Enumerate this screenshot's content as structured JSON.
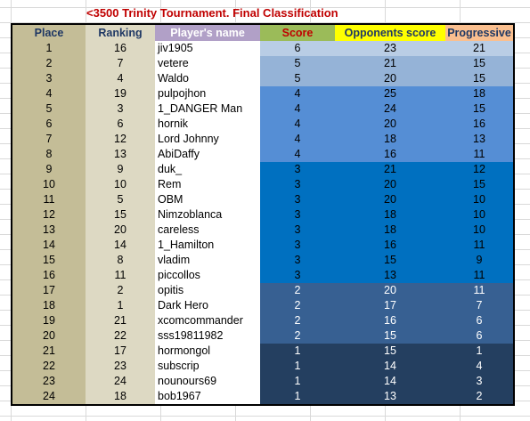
{
  "title": "<3500 Trinity Tournament. Final Classification",
  "headers": [
    {
      "key": "place",
      "label": "Place",
      "bg": "#c4bd97",
      "color": "#1f3864"
    },
    {
      "key": "ranking",
      "label": "Ranking",
      "bg": "#ddd9c3",
      "color": "#1f3864"
    },
    {
      "key": "name",
      "label": "Player's name",
      "bg": "#b1a0c7",
      "color": "#ffffff"
    },
    {
      "key": "score",
      "label": "Score",
      "bg": "#9bbb59",
      "color": "#c00000"
    },
    {
      "key": "opp",
      "label": "Opponents score",
      "bg": "#ffff00",
      "color": "#1f3864"
    },
    {
      "key": "prog",
      "label": "Progressive",
      "bg": "#fabf8f",
      "color": "#1f3864"
    }
  ],
  "group_colors": {
    "6": "#b9cde5",
    "5": "#95b3d7",
    "4": "#558ed5",
    "3": "#0070c0",
    "2": "#376092",
    "1": "#243f60"
  },
  "rows": [
    {
      "place": "1",
      "ranking": "16",
      "name": "jiv1905",
      "score": "6",
      "opp": "23",
      "prog": "21"
    },
    {
      "place": "2",
      "ranking": "7",
      "name": "vetere",
      "score": "5",
      "opp": "21",
      "prog": "15"
    },
    {
      "place": "3",
      "ranking": "4",
      "name": "Waldo",
      "score": "5",
      "opp": "20",
      "prog": "15"
    },
    {
      "place": "4",
      "ranking": "19",
      "name": "pulpojhon",
      "score": "4",
      "opp": "25",
      "prog": "18"
    },
    {
      "place": "5",
      "ranking": "3",
      "name": "1_DANGER Man",
      "score": "4",
      "opp": "24",
      "prog": "15"
    },
    {
      "place": "6",
      "ranking": "6",
      "name": "hornik",
      "score": "4",
      "opp": "20",
      "prog": "16"
    },
    {
      "place": "7",
      "ranking": "12",
      "name": "Lord Johnny",
      "score": "4",
      "opp": "18",
      "prog": "13"
    },
    {
      "place": "8",
      "ranking": "13",
      "name": "AbiDaffy",
      "score": "4",
      "opp": "16",
      "prog": "11"
    },
    {
      "place": "9",
      "ranking": "9",
      "name": "duk_",
      "score": "3",
      "opp": "21",
      "prog": "12"
    },
    {
      "place": "10",
      "ranking": "10",
      "name": "Rem",
      "score": "3",
      "opp": "20",
      "prog": "15"
    },
    {
      "place": "11",
      "ranking": "5",
      "name": "OBM",
      "score": "3",
      "opp": "20",
      "prog": "10"
    },
    {
      "place": "12",
      "ranking": "15",
      "name": "Nimzoblanca",
      "score": "3",
      "opp": "18",
      "prog": "10"
    },
    {
      "place": "13",
      "ranking": "20",
      "name": "careless",
      "score": "3",
      "opp": "18",
      "prog": "10"
    },
    {
      "place": "14",
      "ranking": "14",
      "name": "1_Hamilton",
      "score": "3",
      "opp": "16",
      "prog": "11"
    },
    {
      "place": "15",
      "ranking": "8",
      "name": "vladim",
      "score": "3",
      "opp": "15",
      "prog": "9"
    },
    {
      "place": "16",
      "ranking": "11",
      "name": "piccollos",
      "score": "3",
      "opp": "13",
      "prog": "11"
    },
    {
      "place": "17",
      "ranking": "2",
      "name": "opitis",
      "score": "2",
      "opp": "20",
      "prog": "11"
    },
    {
      "place": "18",
      "ranking": "1",
      "name": "Dark Hero",
      "score": "2",
      "opp": "17",
      "prog": "7"
    },
    {
      "place": "19",
      "ranking": "21",
      "name": "xcomcommander",
      "score": "2",
      "opp": "16",
      "prog": "6"
    },
    {
      "place": "20",
      "ranking": "22",
      "name": "sss19811982",
      "score": "2",
      "opp": "15",
      "prog": "6"
    },
    {
      "place": "21",
      "ranking": "17",
      "name": "hormongol",
      "score": "1",
      "opp": "15",
      "prog": "1"
    },
    {
      "place": "22",
      "ranking": "23",
      "name": "subscrip",
      "score": "1",
      "opp": "14",
      "prog": "4"
    },
    {
      "place": "23",
      "ranking": "24",
      "name": "nounours69",
      "score": "1",
      "opp": "14",
      "prog": "3"
    },
    {
      "place": "24",
      "ranking": "18",
      "name": "bob1967",
      "score": "1",
      "opp": "13",
      "prog": "2"
    }
  ]
}
